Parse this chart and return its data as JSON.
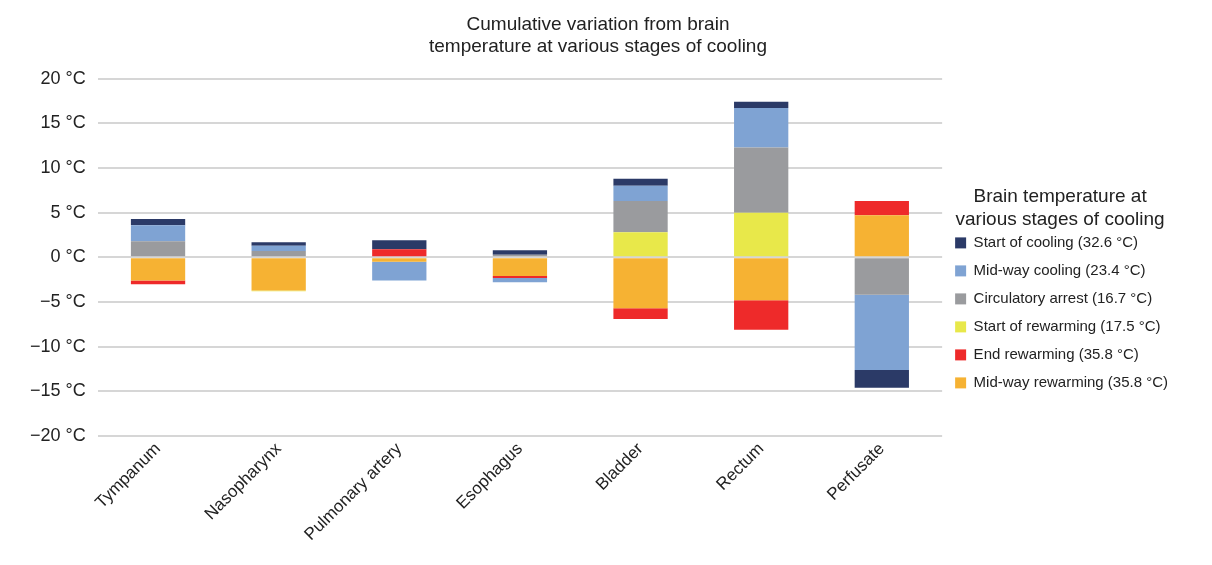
{
  "chart_data": {
    "type": "bar",
    "stacked": true,
    "title": "Cumulative variation from brain\ntemperature at various stages of cooling",
    "legend_title": "Brain temperature at\nvarious stages of cooling",
    "legend": "right",
    "grid": "y",
    "categories": [
      "Tympanum",
      "Nasopharynx",
      "Pulmonary artery",
      "Esophagus",
      "Bladder",
      "Rectum",
      "Perfusate"
    ],
    "ylim": [
      -20,
      20
    ],
    "yticks": [
      {
        "value": -20,
        "label": "−20 °C"
      },
      {
        "value": -15,
        "label": "−15 °C"
      },
      {
        "value": -10,
        "label": "−10 °C"
      },
      {
        "value": -5,
        "label": "−5 °C"
      },
      {
        "value": 0,
        "label": "0 °C"
      },
      {
        "value": 5,
        "label": "5 °C"
      },
      {
        "value": 10,
        "label": "10 °C"
      },
      {
        "value": 15,
        "label": "15 °C"
      },
      {
        "value": 20,
        "label": "20 °C"
      }
    ],
    "series": [
      {
        "name": "Mid-way rewarming (35.8 °C)",
        "color": "#f6b233",
        "values": [
          -2.6,
          -3.7,
          -0.5,
          -2.1,
          -5.7,
          -4.8,
          4.7
        ]
      },
      {
        "name": "End rewarming (35.8 °C)",
        "color": "#ee2a2a",
        "values": [
          -0.4,
          null,
          0.9,
          -0.2,
          -1.2,
          -3.3,
          1.6
        ]
      },
      {
        "name": "Start of rewarming (17.5 °C)",
        "color": "#e8e84a",
        "values": [
          null,
          -0.1,
          null,
          null,
          2.8,
          5.0,
          null
        ]
      },
      {
        "name": "Circulatory arrest (16.7 °C)",
        "color": "#9a9b9e",
        "values": [
          1.8,
          0.7,
          null,
          0.3,
          3.5,
          7.3,
          -4.2
        ]
      },
      {
        "name": "Mid-way cooling (23.4 °C)",
        "color": "#7fa3d3",
        "values": [
          1.8,
          0.6,
          -2.1,
          -0.5,
          1.7,
          4.4,
          -8.4
        ]
      },
      {
        "name": "Start of cooling (32.6 °C)",
        "color": "#2b3a67",
        "values": [
          0.7,
          0.4,
          1.0,
          0.5,
          0.8,
          0.7,
          -2.0
        ]
      }
    ]
  }
}
